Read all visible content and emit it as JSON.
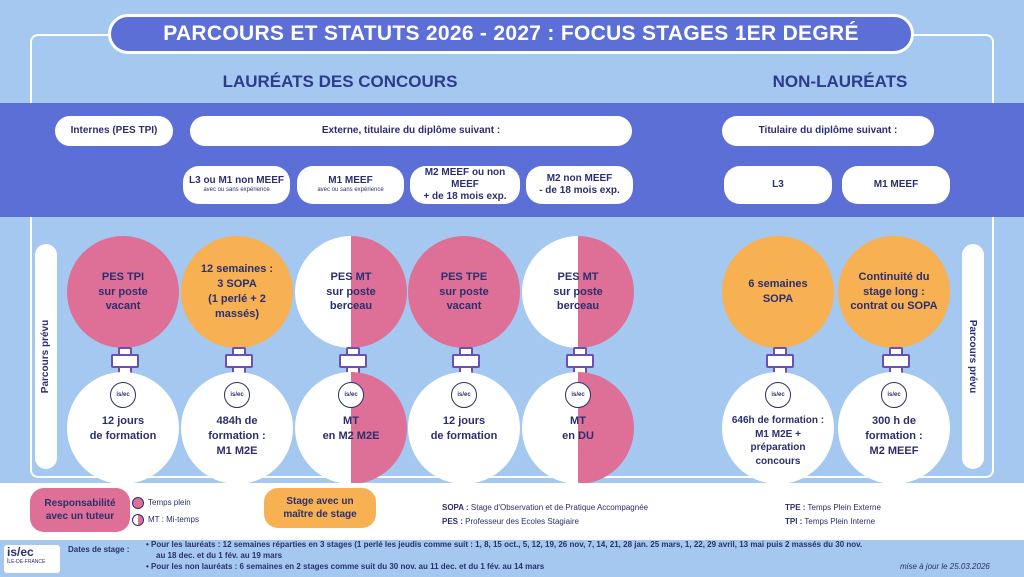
{
  "title": "PARCOURS ET STATUTS 2026 - 2027 : FOCUS STAGES 1ER DEGRÉ",
  "sections": {
    "laureats": "LAURÉATS DES CONCOURS",
    "non_laureats": "NON-LAURÉATS"
  },
  "headers": {
    "internes": "Internes (PES TPI)",
    "externe": "Externe, titulaire du diplôme suivant :",
    "titulaire": "Titulaire du diplôme suivant :"
  },
  "diplomas": [
    {
      "label": "L3 ou M1 non MEEF",
      "sub": "avec ou sans expérience"
    },
    {
      "label": "M1 MEEF",
      "sub": "avec ou sans expérience"
    },
    {
      "label": "M2 MEEF ou non MEEF\n+ de 18 mois exp.",
      "sub": ""
    },
    {
      "label": "M2 non MEEF\n- de 18 mois exp.",
      "sub": ""
    },
    {
      "label": "L3",
      "sub": ""
    },
    {
      "label": "M1 MEEF",
      "sub": ""
    }
  ],
  "side_label": "Parcours prévu",
  "stages": [
    "PES TPI\nsur poste\nvacant",
    "12 semaines :\n3 SOPA\n(1 perlé + 2\nmassés)",
    "PES MT\nsur poste\nberceau",
    "PES TPE\nsur poste\nvacant",
    "PES MT\nsur poste\nberceau",
    "6 semaines\nSOPA",
    "Continuité du\nstage long :\ncontrat ou SOPA"
  ],
  "logo_text": "is/ec",
  "formations": [
    "12 jours\nde formation",
    "484h de\nformation :\nM1 M2E",
    "MT\nen M2 M2E",
    "12 jours\nde formation",
    "MT\nen DU",
    "646h de formation :\nM1 M2E +\npréparation\nconcours",
    "300 h de\nformation :\nM2 MEEF"
  ],
  "legend": {
    "responsabilite": "Responsabilité\navec un tuteur",
    "temps_plein": "Temps plein",
    "mi_temps": "MT : Mi-temps",
    "stage": "Stage avec un\nmaître de stage",
    "sopa_key": "SOPA :",
    "sopa_val": "Stage d'Observation et de Pratique Accompagnée",
    "pes_key": "PES :",
    "pes_val": "Professeur des Ecoles Stagiaire",
    "tpe_key": "TPE :",
    "tpe_val": "Temps Plein Externe",
    "tpi_key": "TPI :",
    "tpi_val": "Temps Plein Interne"
  },
  "footer": {
    "brand": "is/ec",
    "brand_sub": "ÎLE-DE-FRANCE",
    "dates_label": "Dates de stage :",
    "line1": "Pour les lauréats : 12 semaines réparties en 3 stages (1 perlé les jeudis comme suit : 1, 8, 15 oct., 5, 12, 19, 26 nov, 7, 14, 21, 28 jan. 25 mars, 1, 22, 29 avril, 13 mai puis 2 massés du 30 nov.",
    "line1b": "au 18 dec. et du 1 fév. au 19 mars",
    "line2": "Pour les non lauréats : 6 semaines en 2 stages comme suit du 30 nov. au 11 dec. et du 1 fév. au 14 mars",
    "update": "mise à jour le 25.03.2026"
  },
  "colors": {
    "band": "#5b6fd6",
    "pink": "#de6f96",
    "orange": "#f7b052",
    "background": "#a4c8ef"
  }
}
